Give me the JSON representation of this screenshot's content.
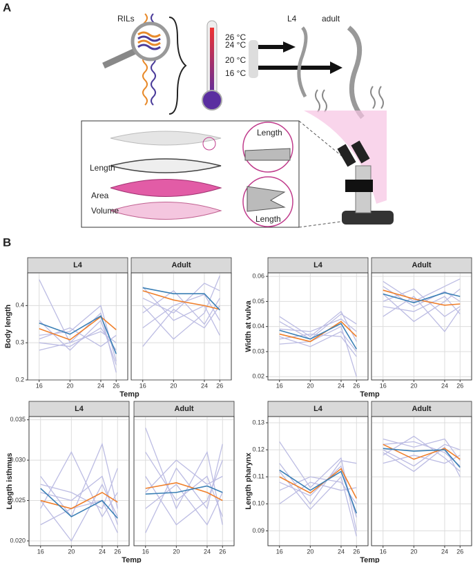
{
  "panel_a": {
    "label": "A",
    "rils": "RILs",
    "temps": [
      "26 °C",
      "24 °C",
      "20 °C",
      "16 °C"
    ],
    "stage_l4": "L4",
    "stage_adult": "adult",
    "inset_length_top": "Length",
    "length": "Length",
    "area": "Area",
    "volume": "Volume",
    "inset_length_bottom": "Length"
  },
  "panel_b_label": "B",
  "chart_data": [
    {
      "type": "line",
      "ylabel": "Body length",
      "xlabel": "Temp",
      "x": [
        16,
        20,
        24,
        26
      ],
      "xlim": [
        14.5,
        27.5
      ],
      "xticks": [
        16,
        20,
        24,
        26
      ],
      "ylim": [
        0.2,
        0.488
      ],
      "yticks": [
        0.2,
        0.3,
        0.4
      ],
      "grid": true,
      "facets": [
        {
          "title": "L4",
          "series": [
            {
              "color": "#bcbce3",
              "values": [
                0.47,
                0.3,
                0.38,
                0.22
              ]
            },
            {
              "color": "#bcbce3",
              "values": [
                0.3,
                0.29,
                0.34,
                0.28
              ]
            },
            {
              "color": "#bcbce3",
              "values": [
                0.32,
                0.33,
                0.4,
                0.25
              ]
            },
            {
              "color": "#bcbce3",
              "values": [
                0.28,
                0.3,
                0.33,
                0.3
              ]
            },
            {
              "color": "#bcbce3",
              "values": [
                0.36,
                0.28,
                0.36,
                0.24
              ]
            },
            {
              "color": "#bcbce3",
              "values": [
                0.31,
                0.34,
                0.29,
                0.32
              ]
            },
            {
              "color": "#f07f2a",
              "values": [
                0.338,
                0.308,
                0.37,
                0.335
              ]
            },
            {
              "color": "#3a7fb5",
              "values": [
                0.353,
                0.323,
                0.372,
                0.27
              ]
            }
          ]
        },
        {
          "title": "Adult",
          "series": [
            {
              "color": "#bcbce3",
              "values": [
                0.42,
                0.38,
                0.46,
                0.44
              ]
            },
            {
              "color": "#bcbce3",
              "values": [
                0.38,
                0.44,
                0.35,
                0.42
              ]
            },
            {
              "color": "#bcbce3",
              "values": [
                0.45,
                0.36,
                0.4,
                0.32
              ]
            },
            {
              "color": "#bcbce3",
              "values": [
                0.34,
                0.4,
                0.43,
                0.36
              ]
            },
            {
              "color": "#bcbce3",
              "values": [
                0.4,
                0.31,
                0.38,
                0.48
              ]
            },
            {
              "color": "#bcbce3",
              "values": [
                0.29,
                0.39,
                0.34,
                0.4
              ]
            },
            {
              "color": "#f07f2a",
              "values": [
                0.44,
                0.415,
                0.4,
                0.39
              ]
            },
            {
              "color": "#3a7fb5",
              "values": [
                0.448,
                0.432,
                0.432,
                0.388
              ]
            }
          ]
        }
      ]
    },
    {
      "type": "line",
      "ylabel": "Width at vulva",
      "xlabel": "Temp",
      "x": [
        16,
        20,
        24,
        26
      ],
      "xlim": [
        14.5,
        27.5
      ],
      "xticks": [
        16,
        20,
        24,
        26
      ],
      "ylim": [
        0.0187,
        0.0614
      ],
      "yticks": [
        0.02,
        0.03,
        0.04,
        0.05,
        0.06
      ],
      "grid": true,
      "facets": [
        {
          "title": "L4",
          "series": [
            {
              "color": "#bcbce3",
              "values": [
                0.044,
                0.036,
                0.046,
                0.034
              ]
            },
            {
              "color": "#bcbce3",
              "values": [
                0.036,
                0.032,
                0.038,
                0.03
              ]
            },
            {
              "color": "#bcbce3",
              "values": [
                0.039,
                0.038,
                0.043,
                0.038
              ]
            },
            {
              "color": "#bcbce3",
              "values": [
                0.033,
                0.034,
                0.04,
                0.02
              ]
            },
            {
              "color": "#bcbce3",
              "values": [
                0.042,
                0.035,
                0.045,
                0.041
              ]
            },
            {
              "color": "#bcbce3",
              "values": [
                0.035,
                0.037,
                0.036,
                0.028
              ]
            },
            {
              "color": "#f07f2a",
              "values": [
                0.037,
                0.034,
                0.042,
                0.036
              ]
            },
            {
              "color": "#3a7fb5",
              "values": [
                0.0385,
                0.035,
                0.0412,
                0.031
              ]
            }
          ]
        },
        {
          "title": "Adult",
          "series": [
            {
              "color": "#bcbce3",
              "values": [
                0.058,
                0.05,
                0.056,
                0.059
              ]
            },
            {
              "color": "#bcbce3",
              "values": [
                0.05,
                0.055,
                0.044,
                0.048
              ]
            },
            {
              "color": "#bcbce3",
              "values": [
                0.048,
                0.046,
                0.052,
                0.045
              ]
            },
            {
              "color": "#bcbce3",
              "values": [
                0.053,
                0.042,
                0.05,
                0.055
              ]
            },
            {
              "color": "#bcbce3",
              "values": [
                0.044,
                0.052,
                0.038,
                0.047
              ]
            },
            {
              "color": "#bcbce3",
              "values": [
                0.056,
                0.048,
                0.054,
                0.05
              ]
            },
            {
              "color": "#f07f2a",
              "values": [
                0.0545,
                0.051,
                0.0485,
                0.049
              ]
            },
            {
              "color": "#3a7fb5",
              "values": [
                0.053,
                0.0495,
                0.0535,
                0.052
              ]
            }
          ]
        }
      ]
    },
    {
      "type": "line",
      "ylabel": "Length isthmus",
      "xlabel": "Temp",
      "x": [
        16,
        20,
        24,
        26
      ],
      "xlim": [
        14.5,
        27.5
      ],
      "xticks": [
        16,
        20,
        24,
        26
      ],
      "ylim": [
        0.0194,
        0.0354
      ],
      "yticks": [
        {
          "value": 0.02,
          "label": "0.020"
        },
        0.025,
        {
          "value": 0.03,
          "label": "0.030"
        },
        0.035
      ],
      "grid": true,
      "facets": [
        {
          "title": "L4",
          "series": [
            {
              "color": "#bcbce3",
              "values": [
                0.028,
                0.023,
                0.032,
                0.024
              ]
            },
            {
              "color": "#bcbce3",
              "values": [
                0.024,
                0.031,
                0.023,
                0.026
              ]
            },
            {
              "color": "#bcbce3",
              "values": [
                0.026,
                0.025,
                0.028,
                0.022
              ]
            },
            {
              "color": "#bcbce3",
              "values": [
                0.022,
                0.024,
                0.025,
                0.021
              ]
            },
            {
              "color": "#bcbce3",
              "values": [
                0.025,
                0.02,
                0.027,
                0.023
              ]
            },
            {
              "color": "#bcbce3",
              "values": [
                0.027,
                0.026,
                0.024,
                0.029
              ]
            },
            {
              "color": "#f07f2a",
              "values": [
                0.025,
                0.024,
                0.026,
                0.0248
              ]
            },
            {
              "color": "#3a7fb5",
              "values": [
                0.0265,
                0.023,
                0.025,
                0.0228
              ]
            }
          ]
        },
        {
          "title": "Adult",
          "series": [
            {
              "color": "#bcbce3",
              "values": [
                0.031,
                0.025,
                0.028,
                0.023
              ]
            },
            {
              "color": "#bcbce3",
              "values": [
                0.021,
                0.029,
                0.024,
                0.032
              ]
            },
            {
              "color": "#bcbce3",
              "values": [
                0.026,
                0.03,
                0.027,
                0.028
              ]
            },
            {
              "color": "#bcbce3",
              "values": [
                0.034,
                0.024,
                0.031,
                0.022
              ]
            },
            {
              "color": "#bcbce3",
              "values": [
                0.024,
                0.027,
                0.022,
                0.026
              ]
            },
            {
              "color": "#bcbce3",
              "values": [
                0.028,
                0.022,
                0.025,
                0.03
              ]
            },
            {
              "color": "#f07f2a",
              "values": [
                0.0265,
                0.0272,
                0.026,
                0.025
              ]
            },
            {
              "color": "#3a7fb5",
              "values": [
                0.0258,
                0.026,
                0.0268,
                0.026
              ]
            }
          ]
        }
      ]
    },
    {
      "type": "line",
      "ylabel": "Length pharynx",
      "xlabel": "Temp",
      "x": [
        16,
        20,
        24,
        26
      ],
      "xlim": [
        14.5,
        27.5
      ],
      "xticks": [
        16,
        20,
        24,
        26
      ],
      "ylim": [
        0.0845,
        0.1323
      ],
      "yticks": [
        0.09,
        {
          "value": 0.1,
          "label": "0.10"
        },
        0.11,
        0.12,
        0.13
      ],
      "grid": true,
      "facets": [
        {
          "title": "L4",
          "series": [
            {
              "color": "#bcbce3",
              "values": [
                0.123,
                0.106,
                0.117,
                0.09
              ]
            },
            {
              "color": "#bcbce3",
              "values": [
                0.105,
                0.11,
                0.108,
                0.1
              ]
            },
            {
              "color": "#bcbce3",
              "values": [
                0.115,
                0.1,
                0.116,
                0.115
              ]
            },
            {
              "color": "#bcbce3",
              "values": [
                0.108,
                0.103,
                0.114,
                0.095
              ]
            },
            {
              "color": "#bcbce3",
              "values": [
                0.1,
                0.108,
                0.105,
                0.106
              ]
            },
            {
              "color": "#bcbce3",
              "values": [
                0.112,
                0.098,
                0.11,
                0.088
              ]
            },
            {
              "color": "#f07f2a",
              "values": [
                0.11,
                0.104,
                0.113,
                0.102
              ]
            },
            {
              "color": "#3a7fb5",
              "values": [
                0.1125,
                0.105,
                0.112,
                0.0965
              ]
            }
          ]
        },
        {
          "title": "Adult",
          "series": [
            {
              "color": "#bcbce3",
              "values": [
                0.124,
                0.121,
                0.124,
                0.116
              ]
            },
            {
              "color": "#bcbce3",
              "values": [
                0.118,
                0.125,
                0.117,
                0.112
              ]
            },
            {
              "color": "#bcbce3",
              "values": [
                0.12,
                0.114,
                0.122,
                0.12
              ]
            },
            {
              "color": "#bcbce3",
              "values": [
                0.115,
                0.118,
                0.115,
                0.118
              ]
            },
            {
              "color": "#bcbce3",
              "values": [
                0.122,
                0.123,
                0.119,
                0.114
              ]
            },
            {
              "color": "#bcbce3",
              "values": [
                0.119,
                0.112,
                0.121,
                0.11
              ]
            },
            {
              "color": "#f07f2a",
              "values": [
                0.122,
                0.1165,
                0.1205,
                0.1165
              ]
            },
            {
              "color": "#3a7fb5",
              "values": [
                0.1205,
                0.1195,
                0.12,
                0.1135
              ]
            }
          ]
        }
      ]
    }
  ]
}
